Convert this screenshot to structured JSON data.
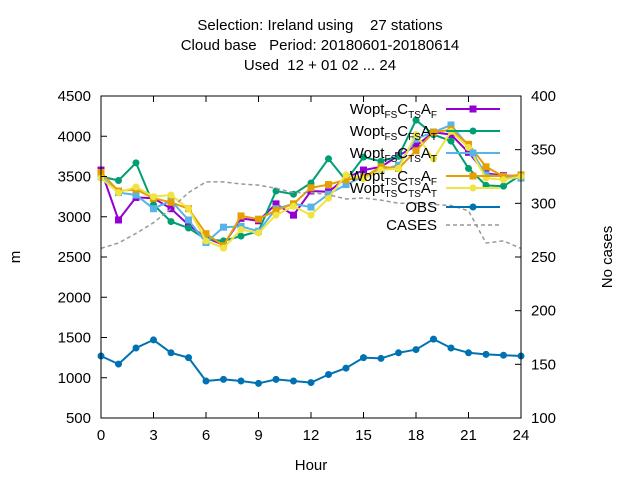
{
  "chart_data": {
    "type": "line",
    "title_lines": [
      "Selection: Ireland using    27 stations",
      "Cloud base   Period: 20180601-20180614",
      "Used  12 + 01 02 ... 24"
    ],
    "xlabel": "Hour",
    "ylabel": "m",
    "y2label": "No cases",
    "xlim": [
      0,
      24
    ],
    "ylim": [
      500,
      4500
    ],
    "y2lim": [
      100,
      400
    ],
    "xticks": [
      "0",
      "3",
      "6",
      "9",
      "12",
      "15",
      "18",
      "21",
      "24"
    ],
    "yticks": [
      "500",
      "1000",
      "1500",
      "2000",
      "2500",
      "3000",
      "3500",
      "4000",
      "4500"
    ],
    "y2ticks": [
      "100",
      "150",
      "200",
      "250",
      "300",
      "350",
      "400"
    ],
    "legend_position": "top-right",
    "x": [
      0,
      1,
      2,
      3,
      4,
      5,
      6,
      7,
      8,
      9,
      10,
      11,
      12,
      13,
      14,
      15,
      16,
      17,
      18,
      19,
      20,
      21,
      22,
      23,
      24
    ],
    "series": [
      {
        "label_main": "Wopt",
        "label_parts": [
          [
            "FS",
            "sub"
          ],
          [
            "C",
            ""
          ],
          [
            "TS",
            "sub"
          ],
          [
            "A",
            ""
          ],
          [
            "F",
            "sub"
          ]
        ],
        "color": "#9400d3",
        "marker": "square",
        "axis": "y",
        "values": [
          3580,
          2960,
          3240,
          3230,
          3100,
          2900,
          2740,
          2650,
          2980,
          2950,
          3160,
          3020,
          3320,
          3310,
          3480,
          3580,
          3620,
          3760,
          3880,
          4050,
          4020,
          3800,
          3540,
          3510,
          3510
        ]
      },
      {
        "label_main": "Wopt",
        "label_parts": [
          [
            "FS",
            "sub"
          ],
          [
            "C",
            ""
          ],
          [
            "FS",
            "sub"
          ],
          [
            "A",
            ""
          ],
          [
            "T",
            "sub"
          ]
        ],
        "color": "#009e73",
        "marker": "circle",
        "axis": "y",
        "values": [
          3500,
          3450,
          3670,
          3150,
          2940,
          2860,
          2720,
          2700,
          2760,
          2820,
          3320,
          3280,
          3420,
          3720,
          3450,
          3740,
          3690,
          3750,
          4200,
          4020,
          3940,
          3600,
          3390,
          3380,
          3520
        ]
      },
      {
        "label_main": "Wopt",
        "label_parts": [
          [
            "FS",
            "sub"
          ],
          [
            "C",
            ""
          ],
          [
            "TS",
            "sub"
          ],
          [
            "A",
            ""
          ],
          [
            "T",
            "sub"
          ]
        ],
        "color": "#56b4e9",
        "marker": "square",
        "axis": "y",
        "values": [
          3500,
          3300,
          3270,
          3100,
          3200,
          2960,
          2680,
          2870,
          2880,
          2820,
          3100,
          3160,
          3120,
          3280,
          3400,
          3500,
          3580,
          3640,
          3970,
          4050,
          4140,
          3880,
          3520,
          3500,
          3480
        ]
      },
      {
        "label_main": "Wopt",
        "label_parts": [
          [
            "TS",
            "sub"
          ],
          [
            "C",
            ""
          ],
          [
            "TS",
            "sub"
          ],
          [
            "A",
            ""
          ],
          [
            "F",
            "sub"
          ]
        ],
        "color": "#e69f00",
        "marker": "square",
        "axis": "y",
        "values": [
          3550,
          3320,
          3340,
          3230,
          3180,
          3100,
          2790,
          2640,
          3010,
          2970,
          3080,
          3160,
          3360,
          3400,
          3460,
          3490,
          3620,
          3600,
          3820,
          4050,
          4080,
          3900,
          3620,
          3500,
          3520
        ]
      },
      {
        "label_main": "Wopt",
        "label_parts": [
          [
            "TS",
            "sub"
          ],
          [
            "C",
            ""
          ],
          [
            "TS",
            "sub"
          ],
          [
            "A",
            ""
          ],
          [
            "T",
            "sub"
          ]
        ],
        "color": "#f0e442",
        "marker": "circle",
        "axis": "y",
        "values": [
          3480,
          3300,
          3370,
          3250,
          3270,
          3100,
          2700,
          2610,
          2840,
          2800,
          3020,
          3130,
          3020,
          3230,
          3520,
          3470,
          3580,
          3600,
          4020,
          3720,
          4060,
          3860,
          3480,
          3460,
          3500
        ]
      },
      {
        "label_main": "OBS",
        "label_parts": [],
        "color": "#0072b2",
        "marker": "circle",
        "axis": "y",
        "values": [
          1270,
          1170,
          1370,
          1470,
          1310,
          1250,
          960,
          980,
          960,
          930,
          980,
          960,
          940,
          1040,
          1120,
          1250,
          1240,
          1310,
          1350,
          1480,
          1370,
          1310,
          1290,
          1280,
          1270
        ]
      },
      {
        "label_main": "CASES",
        "label_parts": [],
        "color": "#999999",
        "marker": "none",
        "dashed": true,
        "axis": "y2",
        "values": [
          258,
          263,
          272,
          282,
          295,
          310,
          320,
          320,
          318,
          317,
          314,
          310,
          310,
          308,
          304,
          305,
          303,
          300,
          300,
          299,
          298,
          293,
          263,
          265,
          258
        ]
      }
    ]
  }
}
